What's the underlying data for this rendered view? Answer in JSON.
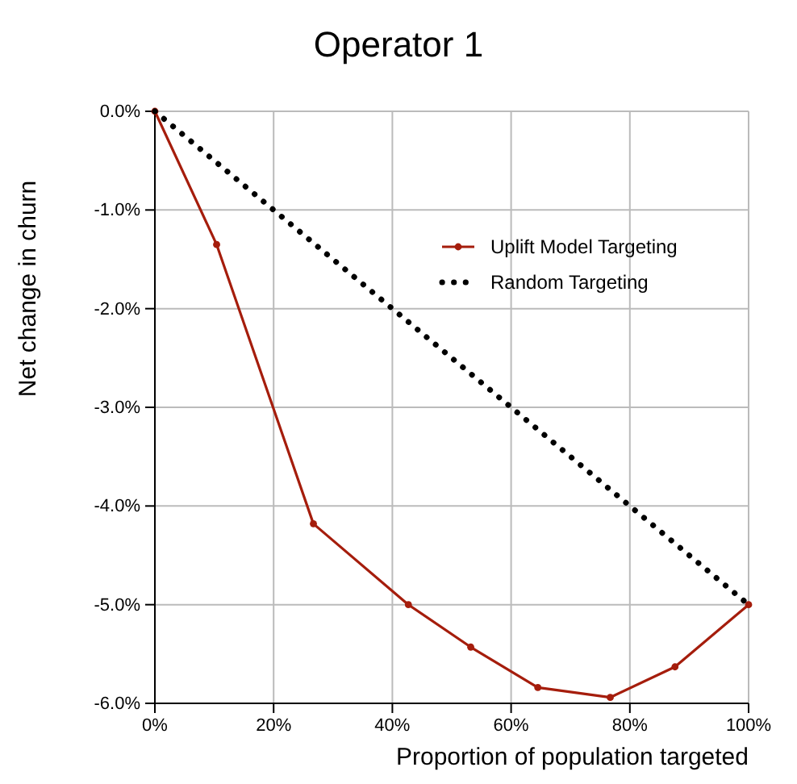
{
  "chart_data": {
    "type": "line",
    "title": "Operator 1",
    "xlabel": "Proportion of population targeted",
    "ylabel": "Net change in churn",
    "xlim": [
      0,
      100
    ],
    "xticks": [
      {
        "value": 0,
        "label": "0%"
      },
      {
        "value": 20,
        "label": "20%"
      },
      {
        "value": 40,
        "label": "40%"
      },
      {
        "value": 60,
        "label": "60%"
      },
      {
        "value": 80,
        "label": "80%"
      },
      {
        "value": 100,
        "label": "100%"
      }
    ],
    "ylim": [
      -6,
      0
    ],
    "yticks": [
      {
        "value": 0,
        "label": "0.0%"
      },
      {
        "value": -1,
        "label": "-1.0%"
      },
      {
        "value": -2,
        "label": "-2.0%"
      },
      {
        "value": -3,
        "label": "-3.0%"
      },
      {
        "value": -4,
        "label": "-4.0%"
      },
      {
        "value": -5,
        "label": "-5.0%"
      },
      {
        "value": -6,
        "label": "-6.0%"
      }
    ],
    "grid": true,
    "legend": "top right",
    "series": [
      {
        "name": "Uplift Model Targeting",
        "color": "#a51d0c",
        "marker": "circle",
        "line_style": "solid",
        "x": [
          0,
          10.4,
          26.7,
          42.7,
          53.2,
          64.5,
          76.7,
          87.6,
          100
        ],
        "values": [
          0,
          -1.35,
          -4.18,
          -5.0,
          -5.43,
          -5.84,
          -5.94,
          -5.63,
          -5.0
        ]
      },
      {
        "name": "Random Targeting",
        "color": "#000000",
        "marker": "none",
        "line_style": "dotted",
        "x": [
          0,
          100
        ],
        "values": [
          0,
          -5.0
        ]
      }
    ]
  }
}
